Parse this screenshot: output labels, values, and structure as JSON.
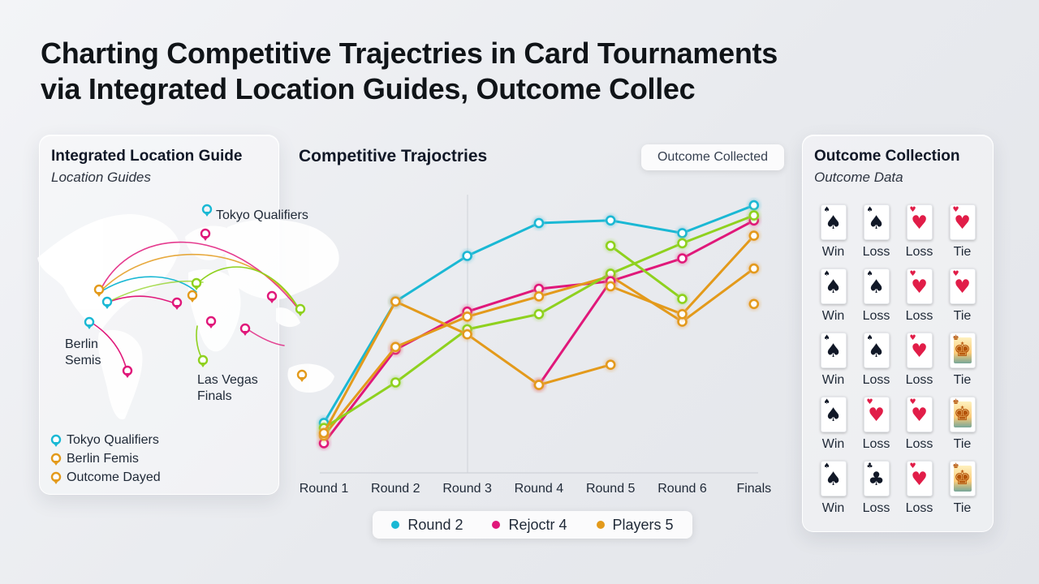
{
  "page": {
    "title_line1": "Charting Competitive Trajectries in Card Tournaments",
    "title_line2": "via Integrated Location Guides, Outcome Collec"
  },
  "location_panel": {
    "title": "Integrated Location Guide",
    "subtitle": "Location Guides",
    "map_labels": {
      "tokyo": "Tokyo Qualifiers",
      "berlin": "Berlin Semis",
      "vegas": "Las Vegas Finals"
    },
    "legend": [
      {
        "label": "Tokyo Qualifiers",
        "color": "#1ab8d4"
      },
      {
        "label": "Berlin Femis",
        "color": "#e39a1b"
      },
      {
        "label": "Outcome Dayed",
        "color": "#e39a1b"
      }
    ]
  },
  "chart_panel": {
    "chip_label": "Outcome Collected",
    "legend": [
      {
        "label": "Round 2",
        "color": "#1ab8d4"
      },
      {
        "label": "Rejoctr 4",
        "color": "#e0187a"
      },
      {
        "label": "Players 5",
        "color": "#e39a1b"
      }
    ]
  },
  "chart_data": {
    "type": "line",
    "title": "Competitive Trajoctries",
    "xlabel": "",
    "ylabel": "",
    "categories": [
      "Round 1",
      "Round 2",
      "Round 3",
      "Round 4",
      "Round 5",
      "Round 6",
      "Finals"
    ],
    "ylim": [
      0,
      100
    ],
    "grid": false,
    "series": [
      {
        "color": "#1ab8d4",
        "values": [
          13,
          61,
          79,
          92,
          93,
          88,
          99
        ]
      },
      {
        "color": "#e0187a",
        "values": [
          5,
          42,
          57,
          66,
          69,
          78,
          93
        ]
      },
      {
        "color": "#e39a1b",
        "values": [
          8,
          43,
          55,
          63,
          71,
          53,
          74
        ]
      },
      {
        "color": "#8fd11f",
        "values": [
          11,
          29,
          50,
          56,
          72,
          84,
          95
        ]
      },
      {
        "color": "#e0187a",
        "values": [
          null,
          null,
          null,
          28,
          69,
          null,
          null
        ]
      },
      {
        "color": "#8fd11f",
        "values": [
          null,
          null,
          null,
          null,
          83,
          62,
          null
        ]
      },
      {
        "color": "#e39a1b",
        "values": [
          9,
          61,
          48,
          28,
          36,
          null,
          60
        ]
      },
      {
        "color": "#e39a1b",
        "values": [
          null,
          null,
          null,
          null,
          67,
          56,
          87
        ]
      }
    ]
  },
  "outcome_panel": {
    "title": "Outcome Collection",
    "subtitle": "Outcome Data",
    "rows": [
      [
        {
          "suit": "♠",
          "color": "#111827",
          "label": "Win"
        },
        {
          "suit": "♠",
          "color": "#111827",
          "label": "Loss"
        },
        {
          "suit": "♥",
          "color": "#e11d48",
          "label": "Loss"
        },
        {
          "suit": "♥",
          "color": "#e11d48",
          "label": "Tie"
        }
      ],
      [
        {
          "suit": "♠",
          "color": "#111827",
          "label": "Win"
        },
        {
          "suit": "♠",
          "color": "#111827",
          "label": "Loss"
        },
        {
          "suit": "♥",
          "color": "#e11d48",
          "label": "Loss"
        },
        {
          "suit": "♥",
          "color": "#e11d48",
          "label": "Tie"
        }
      ],
      [
        {
          "suit": "♠",
          "color": "#111827",
          "label": "Win"
        },
        {
          "suit": "♠",
          "color": "#111827",
          "label": "Loss"
        },
        {
          "suit": "♥",
          "color": "#e11d48",
          "label": "Loss"
        },
        {
          "suit": "♚",
          "color": "#b45309",
          "label": "Tie",
          "face": true
        }
      ],
      [
        {
          "suit": "♠",
          "color": "#111827",
          "label": "Win"
        },
        {
          "suit": "♥",
          "color": "#e11d48",
          "label": "Loss"
        },
        {
          "suit": "♥",
          "color": "#e11d48",
          "label": "Loss"
        },
        {
          "suit": "♚",
          "color": "#b45309",
          "label": "Tie",
          "face": true
        }
      ],
      [
        {
          "suit": "♠",
          "color": "#111827",
          "label": "Win"
        },
        {
          "suit": "♣",
          "color": "#111827",
          "label": "Loss"
        },
        {
          "suit": "♥",
          "color": "#e11d48",
          "label": "Loss"
        },
        {
          "suit": "♚",
          "color": "#b45309",
          "label": "Tie",
          "face": true
        }
      ]
    ]
  }
}
